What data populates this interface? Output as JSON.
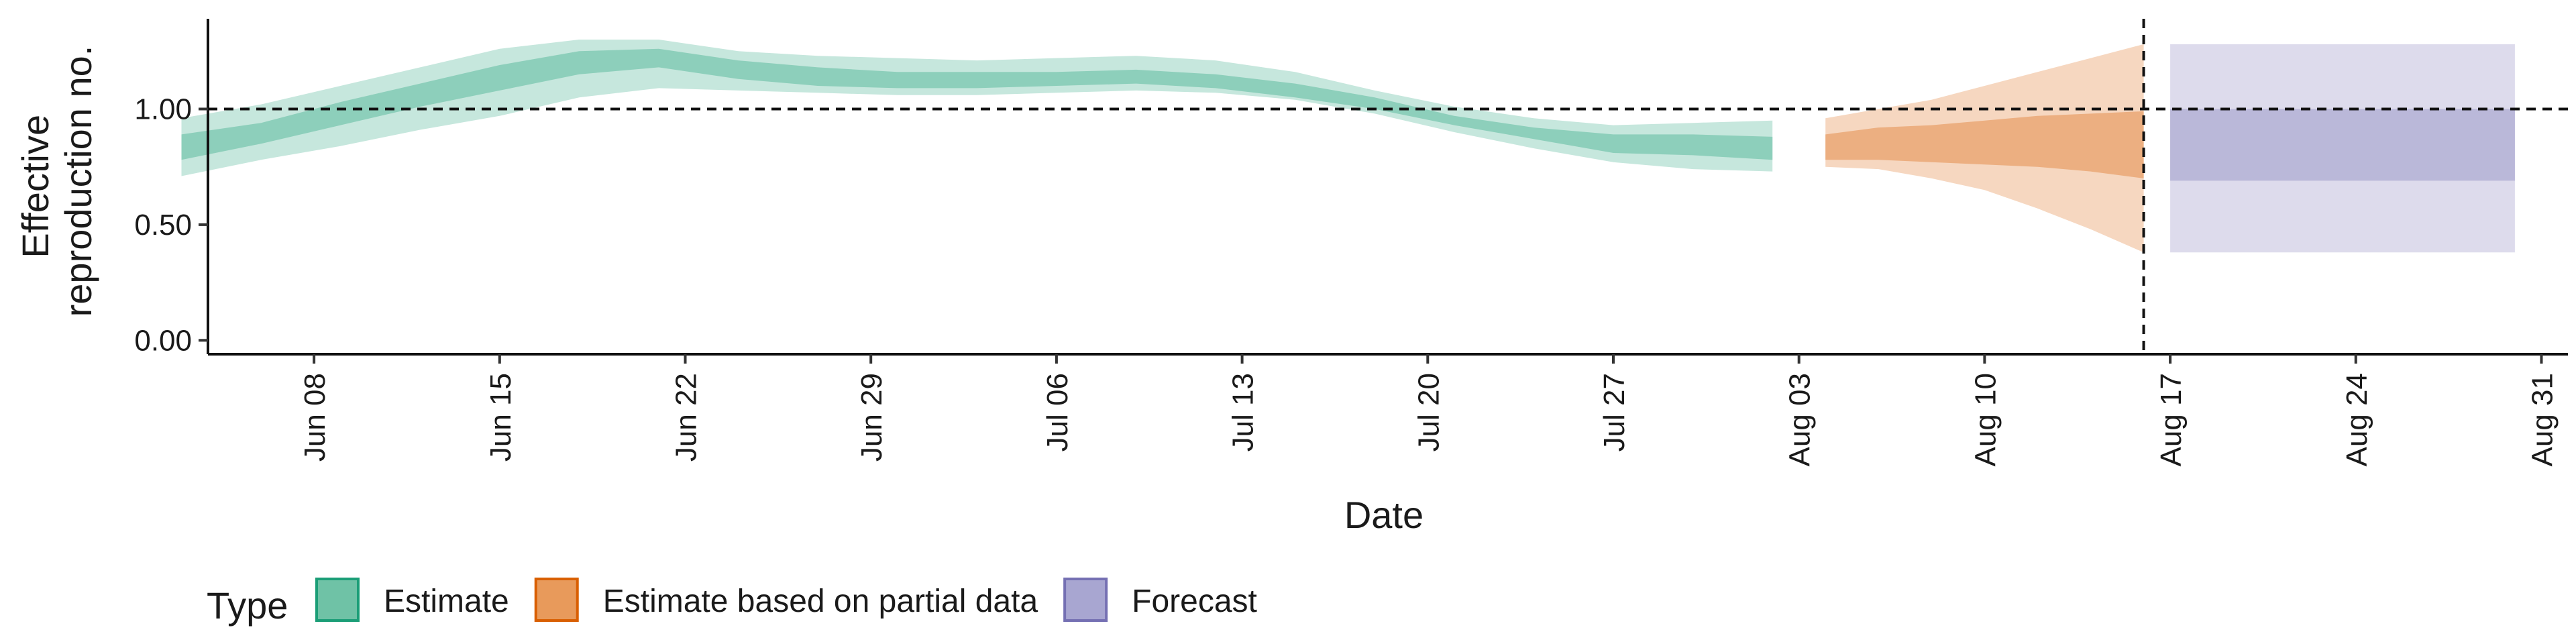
{
  "chart_data": {
    "type": "area",
    "xlabel": "Date",
    "ylabel": [
      "Effective",
      "reproduction no."
    ],
    "x_range": [
      "2020-06-04",
      "2020-09-01"
    ],
    "y_range": [
      -0.06,
      1.39
    ],
    "y_ticks": [
      0.0,
      0.5,
      1.0
    ],
    "y_tick_labels": [
      "0.00",
      "0.50",
      "1.00"
    ],
    "x_ticks": [
      "2020-06-08",
      "2020-06-15",
      "2020-06-22",
      "2020-06-29",
      "2020-07-06",
      "2020-07-13",
      "2020-07-20",
      "2020-07-27",
      "2020-08-03",
      "2020-08-10",
      "2020-08-17",
      "2020-08-24",
      "2020-08-31"
    ],
    "x_tick_labels": [
      "Jun 08",
      "Jun 15",
      "Jun 22",
      "Jun 29",
      "Jul 06",
      "Jul 13",
      "Jul 20",
      "Jul 27",
      "Aug 03",
      "Aug 10",
      "Aug 17",
      "Aug 24",
      "Aug 31"
    ],
    "reference_line_y": 1.0,
    "reference_line_x": "2020-08-16",
    "grid": false,
    "legend_position": "bottom-left",
    "series": [
      {
        "name": "Estimate",
        "color": "#1b9e77",
        "x": [
          "2020-06-03",
          "2020-06-06",
          "2020-06-09",
          "2020-06-12",
          "2020-06-15",
          "2020-06-18",
          "2020-06-21",
          "2020-06-24",
          "2020-06-27",
          "2020-06-30",
          "2020-07-03",
          "2020-07-06",
          "2020-07-09",
          "2020-07-12",
          "2020-07-15",
          "2020-07-18",
          "2020-07-21",
          "2020-07-24",
          "2020-07-27",
          "2020-07-30",
          "2020-08-02"
        ],
        "outer_lower": [
          0.71,
          0.78,
          0.84,
          0.91,
          0.97,
          1.05,
          1.09,
          1.08,
          1.07,
          1.06,
          1.06,
          1.07,
          1.08,
          1.07,
          1.04,
          0.98,
          0.9,
          0.83,
          0.77,
          0.74,
          0.73
        ],
        "outer_upper": [
          0.96,
          1.02,
          1.1,
          1.18,
          1.26,
          1.3,
          1.3,
          1.25,
          1.23,
          1.22,
          1.21,
          1.22,
          1.23,
          1.21,
          1.16,
          1.08,
          1.01,
          0.96,
          0.93,
          0.94,
          0.95
        ],
        "inner_lower": [
          0.78,
          0.85,
          0.93,
          1.01,
          1.08,
          1.15,
          1.18,
          1.13,
          1.1,
          1.09,
          1.09,
          1.1,
          1.11,
          1.09,
          1.05,
          1.0,
          0.93,
          0.87,
          0.81,
          0.8,
          0.78
        ],
        "inner_upper": [
          0.89,
          0.94,
          1.03,
          1.11,
          1.19,
          1.25,
          1.26,
          1.21,
          1.18,
          1.16,
          1.16,
          1.16,
          1.17,
          1.15,
          1.11,
          1.05,
          0.97,
          0.92,
          0.89,
          0.89,
          0.88
        ]
      },
      {
        "name": "Estimate based on partial data",
        "color": "#d95f02",
        "x": [
          "2020-08-04",
          "2020-08-06",
          "2020-08-08",
          "2020-08-10",
          "2020-08-12",
          "2020-08-14",
          "2020-08-16"
        ],
        "outer_lower": [
          0.75,
          0.74,
          0.7,
          0.65,
          0.57,
          0.48,
          0.38
        ],
        "outer_upper": [
          0.96,
          1.0,
          1.04,
          1.1,
          1.16,
          1.22,
          1.28
        ],
        "inner_lower": [
          0.78,
          0.78,
          0.77,
          0.76,
          0.75,
          0.73,
          0.7
        ],
        "inner_upper": [
          0.89,
          0.92,
          0.93,
          0.95,
          0.97,
          0.98,
          0.99
        ]
      },
      {
        "name": "Forecast",
        "color": "#7570b3",
        "x": [
          "2020-08-17",
          "2020-08-30"
        ],
        "outer_lower": [
          0.38,
          0.38
        ],
        "outer_upper": [
          1.28,
          1.28
        ],
        "inner_lower": [
          0.69,
          0.69
        ],
        "inner_upper": [
          1.0,
          1.0
        ]
      }
    ],
    "legend": {
      "title": "Type",
      "items": [
        {
          "label": "Estimate",
          "fill": "#6fc2a6",
          "border": "#1b9e77"
        },
        {
          "label": "Estimate based on partial data",
          "fill": "#e89a5b",
          "border": "#d95f02"
        },
        {
          "label": "Forecast",
          "fill": "#a8a6d1",
          "border": "#7570b3"
        }
      ]
    }
  }
}
